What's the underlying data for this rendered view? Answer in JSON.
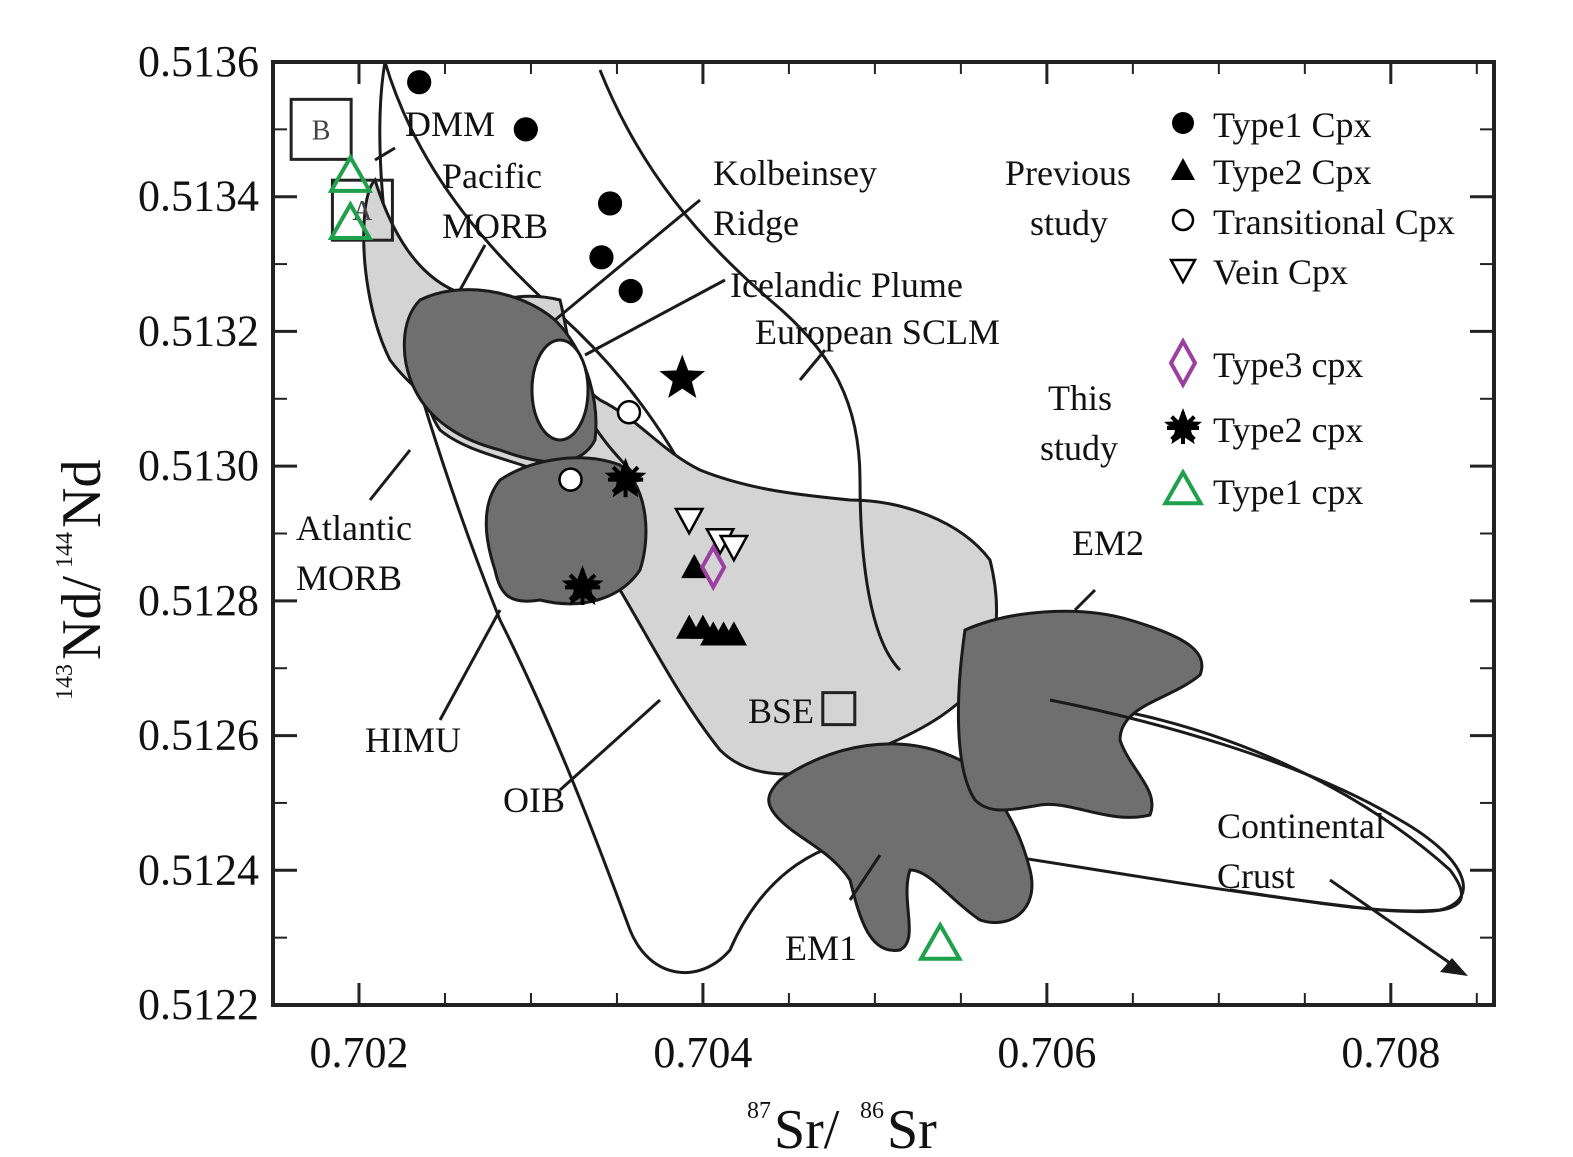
{
  "chart_data": {
    "type": "scatter",
    "title": "",
    "xlabel": {
      "sup1": "87",
      "base1": "Sr/",
      "sup2": "86",
      "base2": "Sr"
    },
    "ylabel": {
      "sup1": "143",
      "base1": "Nd/",
      "sup2": "144",
      "base2": "Nd"
    },
    "xlim": [
      0.7015,
      0.7086
    ],
    "ylim": [
      0.5122,
      0.5136
    ],
    "x_ticks": [
      "0.702",
      "0.704",
      "0.706",
      "0.708"
    ],
    "x_tick_values": [
      0.702,
      0.704,
      0.706,
      0.708
    ],
    "y_ticks": [
      "0.5122",
      "0.5124",
      "0.5126",
      "0.5128",
      "0.5130",
      "0.5132",
      "0.5134",
      "0.5136"
    ],
    "y_tick_values": [
      0.5122,
      0.5124,
      0.5126,
      0.5128,
      0.513,
      0.5132,
      0.5134,
      0.5136
    ],
    "grid": false,
    "legend_placement": "top-right",
    "legend": {
      "previous_study_label": "Previous study",
      "previous_study_lines": [
        "Previous",
        "study"
      ],
      "this_study_lines": [
        "This",
        "study"
      ],
      "entries": [
        {
          "label": "Type1 Cpx",
          "marker": "filled-circle",
          "color": "#000000",
          "group": "previous"
        },
        {
          "label": "Type2 Cpx",
          "marker": "filled-triangle",
          "color": "#000000",
          "group": "previous"
        },
        {
          "label": "Transitional Cpx",
          "marker": "open-circle",
          "color": "#000000",
          "group": "previous"
        },
        {
          "label": "Vein Cpx",
          "marker": "open-inverted-triangle",
          "color": "#000000",
          "group": "previous"
        },
        {
          "label": "Type3 cpx",
          "marker": "open-diamond",
          "color": "#9b3fa0",
          "group": "this"
        },
        {
          "label": "Type2 cpx",
          "marker": "asterisk",
          "color": "#000000",
          "group": "this"
        },
        {
          "label": "Type1 cpx",
          "marker": "open-triangle",
          "color": "#1fa04a",
          "group": "this"
        }
      ]
    },
    "series": [
      {
        "name": "Type1 Cpx",
        "marker": "filled-circle",
        "color": "#000000",
        "points": [
          [
            0.70235,
            0.51357
          ],
          [
            0.70297,
            0.5135
          ],
          [
            0.70346,
            0.51339
          ],
          [
            0.70341,
            0.51331
          ],
          [
            0.70358,
            0.51326
          ]
        ]
      },
      {
        "name": "Type2 Cpx",
        "marker": "filled-triangle",
        "color": "#000000",
        "points": [
          [
            0.70395,
            0.51285
          ],
          [
            0.70392,
            0.51276
          ],
          [
            0.704,
            0.51276
          ],
          [
            0.70406,
            0.51275
          ],
          [
            0.70412,
            0.51275
          ],
          [
            0.70418,
            0.51275
          ]
        ]
      },
      {
        "name": "Transitional Cpx",
        "marker": "open-circle",
        "color": "#000000",
        "points": [
          [
            0.70357,
            0.51308
          ],
          [
            0.70323,
            0.51298
          ]
        ]
      },
      {
        "name": "Vein Cpx",
        "marker": "open-inverted-triangle",
        "color": "#000000",
        "points": [
          [
            0.70392,
            0.51292
          ],
          [
            0.7041,
            0.51289
          ],
          [
            0.70418,
            0.51288
          ]
        ]
      },
      {
        "name": "Type3 cpx",
        "marker": "open-diamond",
        "color": "#9b3fa0",
        "points": [
          [
            0.70406,
            0.51285
          ]
        ]
      },
      {
        "name": "Type2 cpx",
        "marker": "asterisk",
        "color": "#000000",
        "points": [
          [
            0.70355,
            0.51298
          ],
          [
            0.7033,
            0.51282
          ]
        ]
      },
      {
        "name": "",
        "marker": "filled-star",
        "color": "#000000",
        "points": [
          [
            0.70388,
            0.51313
          ]
        ]
      },
      {
        "name": "Type1 cpx",
        "marker": "open-triangle",
        "color": "#1fa04a",
        "points": [
          [
            0.70195,
            0.51343
          ],
          [
            0.70195,
            0.51336
          ],
          [
            0.70538,
            0.51229
          ]
        ]
      }
    ],
    "reference_boxes": [
      {
        "label": "B",
        "x": 0.70178,
        "y": 0.5135
      },
      {
        "label": "A",
        "x": 0.70202,
        "y": 0.51338
      },
      {
        "label": "BSE",
        "x": 0.70479,
        "y": 0.51264
      }
    ],
    "fields": [
      {
        "label": "DMM"
      },
      {
        "label": "Pacific MORB",
        "lines": [
          "Pacific",
          "MORB"
        ]
      },
      {
        "label": "Kolbeinsey Ridge",
        "lines": [
          "Kolbeinsey",
          "Ridge"
        ]
      },
      {
        "label": "Icelandic Plume"
      },
      {
        "label": "European SCLM"
      },
      {
        "label": "Atlantic MORB",
        "lines": [
          "Atlantic",
          "MORB"
        ]
      },
      {
        "label": "HIMU"
      },
      {
        "label": "OIB"
      },
      {
        "label": "BSE"
      },
      {
        "label": "EM2"
      },
      {
        "label": "EM1"
      },
      {
        "label": "Continental Crust",
        "lines": [
          "Continental",
          "Crust"
        ]
      }
    ],
    "colors": {
      "light_field": "#d4d4d4",
      "dark_field": "#6f6f6f",
      "outline": "#1a1a1a"
    }
  }
}
